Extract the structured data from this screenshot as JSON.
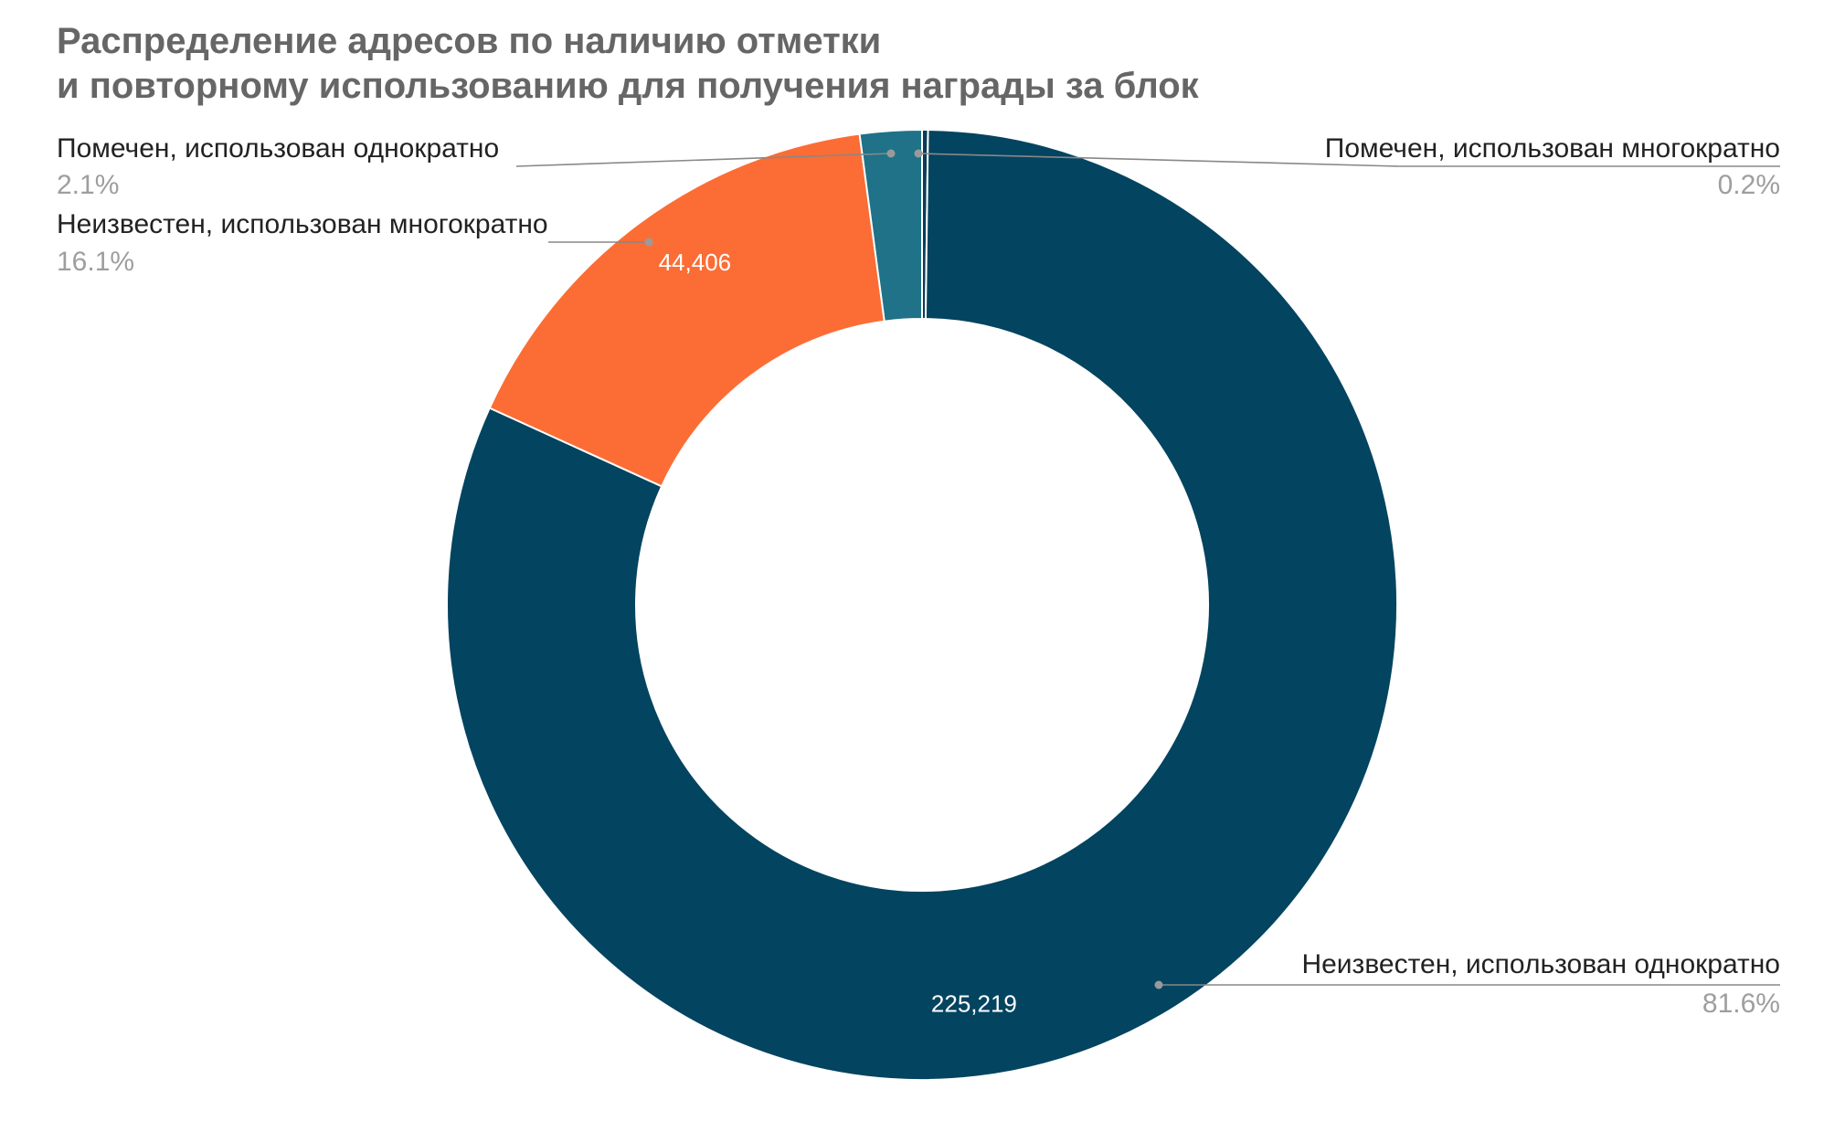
{
  "chart_data": {
    "type": "pie",
    "donut": true,
    "title_lines": [
      "Распределение адресов по наличию отметки",
      "и повторному использованию для получения награды за блок"
    ],
    "slices": [
      {
        "label": "Помечен, использован многократно",
        "percent_label": "0.2%",
        "value_share": 0.2,
        "color": "#0b3b57"
      },
      {
        "label": "Неизвестен, использован однократно",
        "percent_label": "81.6%",
        "value_share": 81.6,
        "data_label": "225,219",
        "color": "#034460"
      },
      {
        "label": "Неизвестен, использован многократно",
        "percent_label": "16.1%",
        "value_share": 16.1,
        "data_label": "44,406",
        "color": "#fb6d35"
      },
      {
        "label": "Помечен, использован однократно",
        "percent_label": "2.1%",
        "value_share": 2.1,
        "color": "#1f7287"
      }
    ],
    "legend": "callout-labels"
  }
}
